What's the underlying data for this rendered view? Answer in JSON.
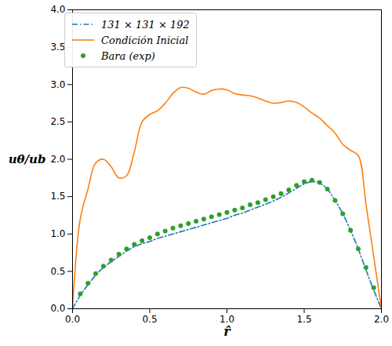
{
  "chart_data": {
    "type": "line",
    "x_label": "r̂",
    "y_label": "uθ/ub",
    "x": [
      0,
      0.05,
      0.1,
      0.15,
      0.2,
      0.25,
      0.3,
      0.35,
      0.4,
      0.45,
      0.5,
      0.55,
      0.6,
      0.65,
      0.7,
      0.75,
      0.8,
      0.85,
      0.9,
      0.95,
      1.0,
      1.05,
      1.1,
      1.15,
      1.2,
      1.25,
      1.3,
      1.35,
      1.4,
      1.45,
      1.5,
      1.55,
      1.6,
      1.65,
      1.7,
      1.75,
      1.8,
      1.85,
      1.9,
      1.95,
      2.0
    ],
    "series": [
      {
        "name": "131 × 131 × 192",
        "color": "#1f77b4",
        "type": "line",
        "line_style": "dashdot",
        "values": [
          0,
          0.18,
          0.32,
          0.45,
          0.55,
          0.63,
          0.7,
          0.77,
          0.83,
          0.87,
          0.9,
          0.94,
          0.97,
          1.0,
          1.03,
          1.06,
          1.09,
          1.12,
          1.15,
          1.18,
          1.21,
          1.25,
          1.28,
          1.32,
          1.36,
          1.4,
          1.44,
          1.49,
          1.55,
          1.61,
          1.67,
          1.7,
          1.68,
          1.6,
          1.45,
          1.27,
          1.05,
          0.8,
          0.52,
          0.25,
          0
        ]
      },
      {
        "name": "Condición Inicial",
        "color": "#ff7f0e",
        "type": "line",
        "line_style": "solid",
        "values": [
          0,
          1.2,
          1.6,
          1.95,
          2.0,
          1.9,
          1.75,
          1.78,
          2.1,
          2.5,
          2.6,
          2.65,
          2.75,
          2.88,
          2.96,
          2.95,
          2.9,
          2.87,
          2.92,
          2.94,
          2.93,
          2.88,
          2.86,
          2.85,
          2.82,
          2.78,
          2.75,
          2.76,
          2.78,
          2.76,
          2.7,
          2.62,
          2.55,
          2.45,
          2.35,
          2.2,
          2.12,
          2.05,
          1.4,
          0.7,
          0
        ]
      },
      {
        "name": "Bara (exp)",
        "color": "#2ca02c",
        "type": "scatter",
        "marker": "circle",
        "values": [
          null,
          0.2,
          0.34,
          0.47,
          0.57,
          0.65,
          0.73,
          0.8,
          0.86,
          0.91,
          0.95,
          1.0,
          1.04,
          1.08,
          1.11,
          1.14,
          1.17,
          1.2,
          1.23,
          1.26,
          1.29,
          1.32,
          1.35,
          1.39,
          1.42,
          1.46,
          1.5,
          1.54,
          1.59,
          1.65,
          1.7,
          1.72,
          1.69,
          1.6,
          1.45,
          1.27,
          1.05,
          0.8,
          0.55,
          0.28,
          null
        ]
      }
    ],
    "xlim": [
      0,
      2
    ],
    "ylim": [
      0,
      4
    ],
    "xticks": [
      {
        "value": 0,
        "label": "0.0"
      },
      {
        "value": 0.5,
        "label": "0.5"
      },
      {
        "value": 1,
        "label": "1.0"
      },
      {
        "value": 1.5,
        "label": "1.5"
      },
      {
        "value": 2,
        "label": "2.0"
      }
    ],
    "yticks": [
      {
        "value": 0,
        "label": "0.0"
      },
      {
        "value": 0.5,
        "label": "0.5"
      },
      {
        "value": 1,
        "label": "1.0"
      },
      {
        "value": 1.5,
        "label": "1.5"
      },
      {
        "value": 2,
        "label": "2.0"
      },
      {
        "value": 2.5,
        "label": "2.5"
      },
      {
        "value": 3,
        "label": "3.0"
      },
      {
        "value": 3.5,
        "label": "3.5"
      },
      {
        "value": 4,
        "label": "4.0"
      }
    ],
    "grid": false,
    "legend": "upper left"
  }
}
